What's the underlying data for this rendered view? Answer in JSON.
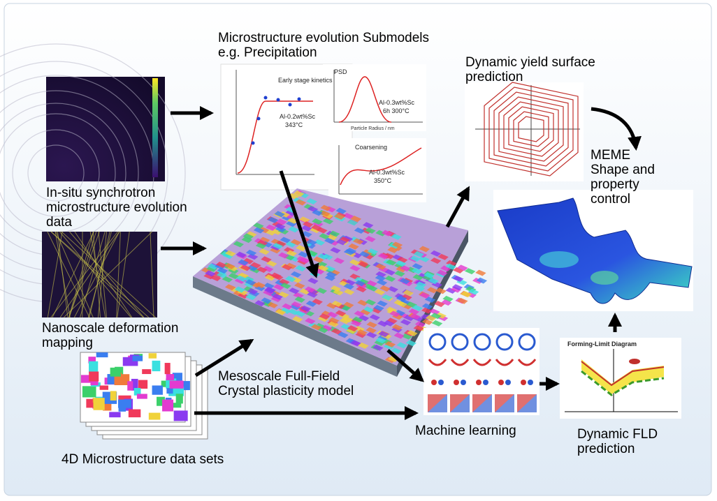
{
  "labels": {
    "submodels": [
      "Microstructure evolution Submodels",
      "e.g. Precipitation"
    ],
    "yield": [
      "Dynamic yield surface",
      "prediction"
    ],
    "synchrotron": [
      "In-situ synchrotron",
      "microstructure evolution",
      "data"
    ],
    "nanoscale": [
      "Nanoscale deformation",
      "mapping"
    ],
    "meme": [
      "MEME",
      "Shape and",
      "property",
      "control"
    ],
    "mesoscale": [
      "Mesoscale Full-Field",
      "Crystal plasticity model"
    ],
    "ml": [
      "Machine learning"
    ],
    "datasets": [
      "4D Microstructure data sets"
    ],
    "fld": [
      "Dynamic FLD",
      "prediction"
    ]
  },
  "insets": {
    "kinetics": [
      "Early stage kinetics",
      "Al-0.2wt%Sc",
      "343°C"
    ],
    "psd": [
      "PSD",
      "Al-0.3wt%Sc",
      "6h 300°C",
      "Particle Radius / nm"
    ],
    "coarsening": [
      "Coarsening",
      "Al-0.3wt%Sc",
      "350°C"
    ],
    "fld_title": "Forming-Limit Diagram"
  }
}
